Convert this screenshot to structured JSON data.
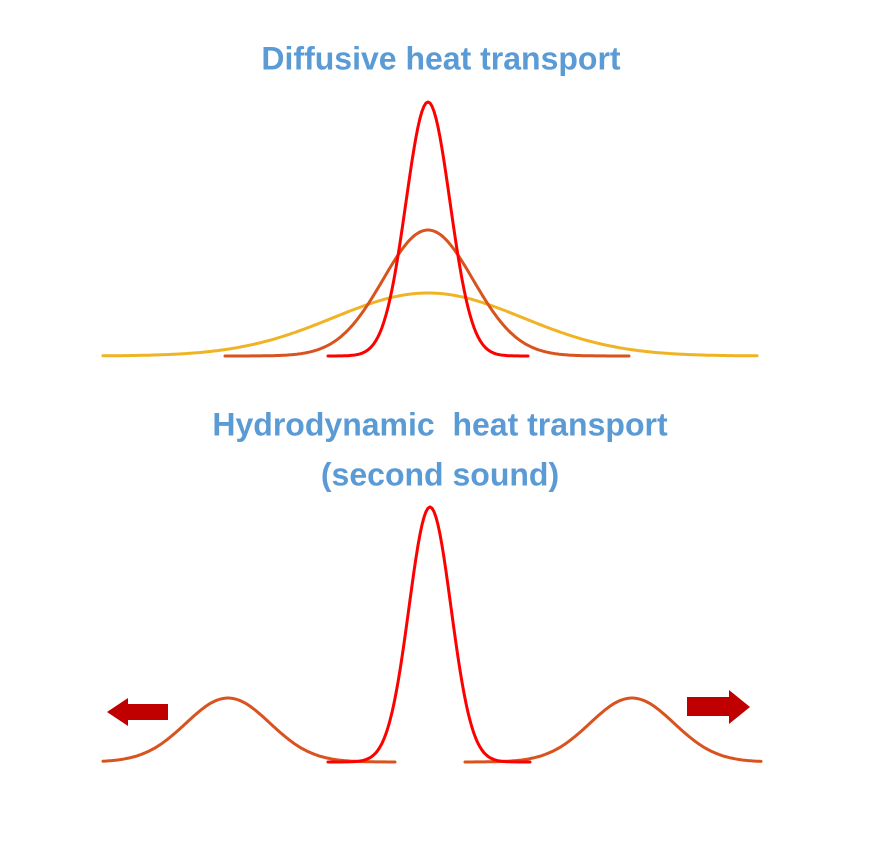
{
  "diffusive": {
    "title": "Diffusive heat transport"
  },
  "hydrodynamic": {
    "title": "Hydrodynamic  heat transport",
    "subtitle": "(second sound)"
  }
}
